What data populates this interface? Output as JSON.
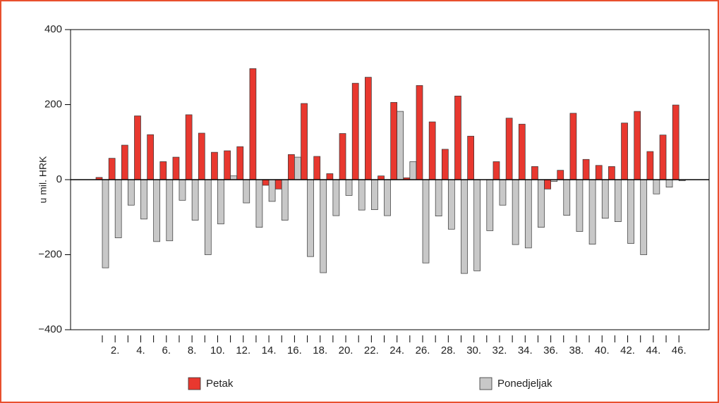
{
  "chart_data": {
    "type": "bar",
    "y_label": "u mil. HRK",
    "categories": [
      null,
      "2.",
      null,
      "4.",
      null,
      "6.",
      null,
      "8.",
      null,
      "10.",
      null,
      "12.",
      null,
      "14.",
      null,
      "16.",
      null,
      "18.",
      null,
      "20.",
      null,
      "22.",
      null,
      "24.",
      null,
      "26.",
      null,
      "28.",
      null,
      "30.",
      null,
      "32.",
      null,
      "34.",
      null,
      "36.",
      null,
      "38.",
      null,
      "40.",
      null,
      "42.",
      null,
      "44.",
      null,
      "46."
    ],
    "series": [
      {
        "name": "Petak",
        "color": "#e8382f",
        "values": [
          6,
          57,
          92,
          170,
          120,
          48,
          60,
          173,
          124,
          73,
          77,
          88,
          296,
          -15,
          -25,
          67,
          203,
          62,
          16,
          123,
          257,
          273,
          10,
          206,
          5,
          251,
          154,
          81,
          223,
          116,
          0,
          48,
          164,
          148,
          35,
          -25,
          25,
          177,
          54,
          38,
          35,
          151,
          182,
          75,
          119,
          199
        ]
      },
      {
        "name": "Ponedjeljak",
        "color": "#c8c8c8",
        "values": [
          -235,
          -155,
          -68,
          -105,
          -165,
          -163,
          -55,
          -108,
          -200,
          -118,
          10,
          -62,
          -127,
          -58,
          -108,
          60,
          -205,
          -248,
          -96,
          -42,
          -81,
          -80,
          -96,
          182,
          48,
          -222,
          -97,
          -132,
          -250,
          -243,
          -136,
          -68,
          -173,
          -182,
          -127,
          -5,
          -95,
          -138,
          -172,
          -103,
          -112,
          -170,
          -200,
          -38,
          -20,
          -3
        ]
      }
    ],
    "ylim": [
      -400,
      400
    ],
    "yticks": [
      {
        "value": -400,
        "label": "−400"
      },
      {
        "value": -200,
        "label": "−200"
      },
      0,
      200,
      400
    ]
  }
}
